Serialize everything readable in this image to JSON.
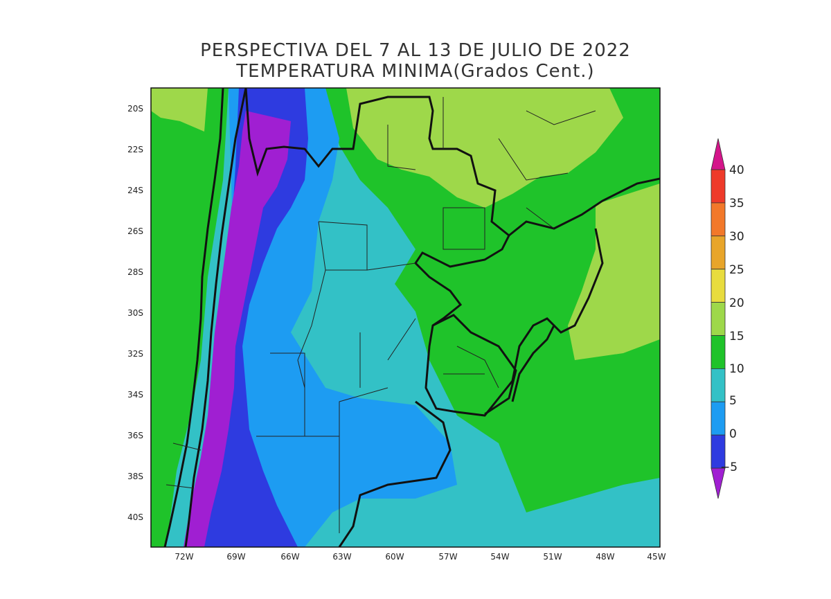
{
  "title": {
    "line1": "PERSPECTIVA DEL 7 AL 13 DE JULIO DE 2022",
    "line2": "TEMPERATURA MINIMA(Grados Cent.)"
  },
  "axes": {
    "lat_labels": [
      "20S",
      "22S",
      "24S",
      "26S",
      "28S",
      "30S",
      "32S",
      "34S",
      "36S",
      "38S",
      "40S"
    ],
    "lon_labels": [
      "72W",
      "69W",
      "66W",
      "63W",
      "60W",
      "57W",
      "54W",
      "51W",
      "48W",
      "45W"
    ]
  },
  "colorbar": {
    "labels": [
      "40",
      "35",
      "30",
      "25",
      "20",
      "15",
      "10",
      "5",
      "0",
      "−5"
    ],
    "bands": [
      {
        "from": 40,
        "to": 45,
        "color": "#d4158a"
      },
      {
        "from": 35,
        "to": 40,
        "color": "#ee3a2a"
      },
      {
        "from": 30,
        "to": 35,
        "color": "#f2782a"
      },
      {
        "from": 25,
        "to": 30,
        "color": "#e8a52a"
      },
      {
        "from": 20,
        "to": 25,
        "color": "#e8dc3e"
      },
      {
        "from": 15,
        "to": 20,
        "color": "#9ed84a"
      },
      {
        "from": 10,
        "to": 15,
        "color": "#1fc32a"
      },
      {
        "from": 5,
        "to": 10,
        "color": "#33c1c6"
      },
      {
        "from": 0,
        "to": 5,
        "color": "#1d9cf2"
      },
      {
        "from": -5,
        "to": 0,
        "color": "#2e3be0"
      },
      {
        "from": -10,
        "to": -5,
        "color": "#a01fd2"
      }
    ]
  },
  "colors": {
    "cold_purple": "#a01fd2",
    "blue_neg": "#2e3be0",
    "blue_0_5": "#1d9cf2",
    "cyan_5_10": "#33c1c6",
    "green_10_15": "#1fc32a",
    "lightgreen_15_20": "#9ed84a",
    "border": "#111111"
  }
}
